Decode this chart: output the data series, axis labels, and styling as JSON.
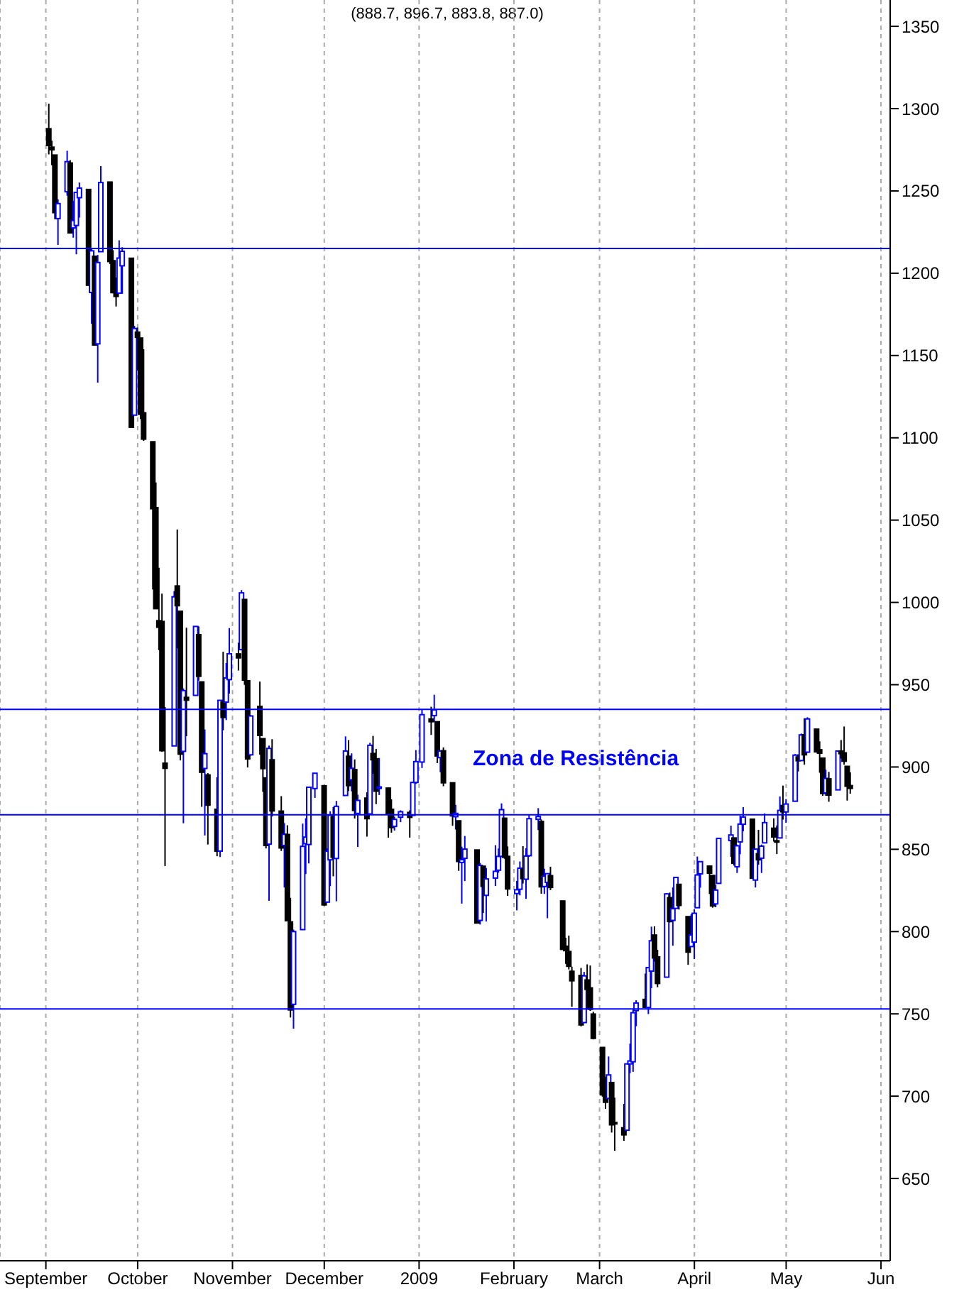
{
  "chart_data": {
    "type": "candlestick",
    "title": "(888.7, 896.7, 883.8, 887.0)",
    "annotations": [
      "Zona de Resistência"
    ],
    "x": [
      "2008-09-02",
      "2008-09-03",
      "2008-09-04",
      "2008-09-05",
      "2008-09-08",
      "2008-09-09",
      "2008-09-10",
      "2008-09-11",
      "2008-09-12",
      "2008-09-15",
      "2008-09-16",
      "2008-09-17",
      "2008-09-18",
      "2008-09-19",
      "2008-09-22",
      "2008-09-23",
      "2008-09-24",
      "2008-09-25",
      "2008-09-26",
      "2008-09-29",
      "2008-09-30",
      "2008-10-01",
      "2008-10-02",
      "2008-10-03",
      "2008-10-06",
      "2008-10-07",
      "2008-10-08",
      "2008-10-09",
      "2008-10-10",
      "2008-10-13",
      "2008-10-14",
      "2008-10-15",
      "2008-10-16",
      "2008-10-17",
      "2008-10-20",
      "2008-10-21",
      "2008-10-22",
      "2008-10-23",
      "2008-10-24",
      "2008-10-27",
      "2008-10-28",
      "2008-10-29",
      "2008-10-30",
      "2008-10-31",
      "2008-11-03",
      "2008-11-04",
      "2008-11-05",
      "2008-11-06",
      "2008-11-07",
      "2008-11-10",
      "2008-11-11",
      "2008-11-12",
      "2008-11-13",
      "2008-11-14",
      "2008-11-17",
      "2008-11-18",
      "2008-11-19",
      "2008-11-20",
      "2008-11-21",
      "2008-11-24",
      "2008-11-25",
      "2008-11-26",
      "2008-11-28",
      "2008-12-01",
      "2008-12-02",
      "2008-12-03",
      "2008-12-04",
      "2008-12-05",
      "2008-12-08",
      "2008-12-09",
      "2008-12-10",
      "2008-12-11",
      "2008-12-12",
      "2008-12-15",
      "2008-12-16",
      "2008-12-17",
      "2008-12-18",
      "2008-12-19",
      "2008-12-22",
      "2008-12-23",
      "2008-12-24",
      "2008-12-26",
      "2008-12-29",
      "2008-12-30",
      "2008-12-31",
      "2009-01-02",
      "2009-01-05",
      "2009-01-06",
      "2009-01-07",
      "2009-01-08",
      "2009-01-09",
      "2009-01-12",
      "2009-01-13",
      "2009-01-14",
      "2009-01-15",
      "2009-01-16",
      "2009-01-20",
      "2009-01-21",
      "2009-01-22",
      "2009-01-23",
      "2009-01-26",
      "2009-01-27",
      "2009-01-28",
      "2009-01-29",
      "2009-01-30",
      "2009-02-02",
      "2009-02-03",
      "2009-02-04",
      "2009-02-05",
      "2009-02-06",
      "2009-02-09",
      "2009-02-10",
      "2009-02-11",
      "2009-02-12",
      "2009-02-13",
      "2009-02-17",
      "2009-02-18",
      "2009-02-19",
      "2009-02-20",
      "2009-02-23",
      "2009-02-24",
      "2009-02-25",
      "2009-02-26",
      "2009-02-27",
      "2009-03-02",
      "2009-03-03",
      "2009-03-04",
      "2009-03-05",
      "2009-03-06",
      "2009-03-09",
      "2009-03-10",
      "2009-03-11",
      "2009-03-12",
      "2009-03-13",
      "2009-03-16",
      "2009-03-17",
      "2009-03-18",
      "2009-03-19",
      "2009-03-20",
      "2009-03-23",
      "2009-03-24",
      "2009-03-25",
      "2009-03-26",
      "2009-03-27",
      "2009-03-30",
      "2009-03-31",
      "2009-04-01",
      "2009-04-02",
      "2009-04-03",
      "2009-04-06",
      "2009-04-07",
      "2009-04-08",
      "2009-04-09",
      "2009-04-13",
      "2009-04-14",
      "2009-04-15",
      "2009-04-16",
      "2009-04-17",
      "2009-04-20",
      "2009-04-21",
      "2009-04-22",
      "2009-04-23",
      "2009-04-24",
      "2009-04-27",
      "2009-04-28",
      "2009-04-29",
      "2009-04-30",
      "2009-05-01",
      "2009-05-04",
      "2009-05-05",
      "2009-05-06",
      "2009-05-07",
      "2009-05-08",
      "2009-05-11",
      "2009-05-12",
      "2009-05-13",
      "2009-05-14",
      "2009-05-15",
      "2009-05-18",
      "2009-05-19",
      "2009-05-20",
      "2009-05-21",
      "2009-05-22"
    ],
    "ohlc": [
      [
        1287.8,
        1303.0,
        1272.2,
        1277.6
      ],
      [
        1276.6,
        1280.6,
        1265.6,
        1275.0
      ],
      [
        1271.8,
        1271.8,
        1232.8,
        1236.8
      ],
      [
        1233.2,
        1244.9,
        1217.2,
        1242.3
      ],
      [
        1249.5,
        1274.4,
        1247.1,
        1267.8
      ],
      [
        1267.0,
        1268.7,
        1224.5,
        1224.5
      ],
      [
        1227.5,
        1243.9,
        1221.6,
        1232.0
      ],
      [
        1229.0,
        1249.1,
        1211.5,
        1249.1
      ],
      [
        1245.9,
        1255.1,
        1233.8,
        1251.7
      ],
      [
        1250.9,
        1250.9,
        1192.7,
        1192.7
      ],
      [
        1188.3,
        1214.8,
        1169.3,
        1213.6
      ],
      [
        1210.3,
        1210.3,
        1155.9,
        1156.4
      ],
      [
        1157.1,
        1211.1,
        1133.5,
        1206.5
      ],
      [
        1213.1,
        1265.1,
        1213.1,
        1255.1
      ],
      [
        1255.4,
        1255.4,
        1205.6,
        1207.1
      ],
      [
        1207.6,
        1214.0,
        1187.8,
        1188.2
      ],
      [
        1188.8,
        1197.4,
        1179.8,
        1185.9
      ],
      [
        1187.9,
        1220.0,
        1187.9,
        1209.2
      ],
      [
        1204.5,
        1215.8,
        1187.5,
        1213.3
      ],
      [
        1209.1,
        1209.1,
        1106.4,
        1106.4
      ],
      [
        1113.8,
        1168.0,
        1113.8,
        1166.4
      ],
      [
        1164.2,
        1167.0,
        1140.8,
        1161.1
      ],
      [
        1160.6,
        1160.6,
        1111.4,
        1114.3
      ],
      [
        1115.2,
        1153.8,
        1098.1,
        1099.2
      ],
      [
        1097.6,
        1097.6,
        1007.9,
        1056.9
      ],
      [
        1057.6,
        1072.9,
        996.2,
        996.2
      ],
      [
        988.9,
        1021.1,
        971.0,
        984.9
      ],
      [
        988.4,
        1005.3,
        909.2,
        909.9
      ],
      [
        902.3,
        936.4,
        839.8,
        899.2
      ],
      [
        912.8,
        1006.9,
        912.8,
        1003.4
      ],
      [
        1010.0,
        1044.3,
        972.1,
        998.0
      ],
      [
        994.6,
        994.6,
        904.0,
        907.8
      ],
      [
        909.5,
        947.7,
        865.8,
        946.4
      ],
      [
        942.3,
        984.6,
        918.7,
        940.6
      ],
      [
        943.5,
        985.4,
        943.5,
        985.4
      ],
      [
        980.4,
        985.4,
        952.5,
        955.1
      ],
      [
        951.7,
        951.7,
        875.8,
        896.8
      ],
      [
        899.1,
        922.8,
        858.4,
        908.1
      ],
      [
        895.2,
        896.3,
        852.9,
        876.8
      ],
      [
        874.3,
        893.8,
        845.8,
        848.9
      ],
      [
        848.9,
        940.5,
        845.3,
        940.5
      ],
      [
        939.5,
        970.0,
        922.3,
        930.1
      ],
      [
        939.4,
        963.2,
        928.5,
        954.1
      ],
      [
        953.1,
        984.4,
        944.6,
        968.8
      ],
      [
        968.7,
        975.5,
        958.6,
        966.3
      ],
      [
        971.3,
        1007.5,
        971.3,
        1005.8
      ],
      [
        1001.8,
        1001.8,
        949.9,
        952.8
      ],
      [
        952.4,
        952.4,
        899.7,
        904.9
      ],
      [
        907.4,
        931.5,
        906.9,
        931.0
      ],
      [
        936.8,
        951.9,
        907.5,
        919.2
      ],
      [
        917.2,
        917.2,
        884.9,
        899.0
      ],
      [
        893.4,
        893.4,
        850.5,
        852.3
      ],
      [
        853.1,
        913.0,
        818.7,
        911.3
      ],
      [
        904.4,
        916.9,
        869.9,
        873.3
      ],
      [
        873.2,
        882.3,
        849.0,
        850.8
      ],
      [
        852.3,
        865.9,
        826.8,
        859.1
      ],
      [
        859.0,
        864.6,
        806.2,
        806.6
      ],
      [
        805.9,
        820.5,
        747.8,
        752.4
      ],
      [
        755.8,
        801.2,
        741.0,
        800.0
      ],
      [
        801.2,
        865.6,
        801.2,
        851.8
      ],
      [
        853.4,
        868.9,
        835.0,
        857.4
      ],
      [
        852.9,
        887.7,
        841.4,
        887.7
      ],
      [
        886.9,
        896.3,
        881.2,
        896.2
      ],
      [
        888.6,
        888.6,
        815.7,
        816.2
      ],
      [
        817.9,
        850.5,
        817.9,
        848.8
      ],
      [
        843.6,
        873.1,
        827.6,
        870.7
      ],
      [
        869.8,
        875.6,
        833.6,
        845.2
      ],
      [
        844.4,
        879.4,
        818.4,
        876.1
      ],
      [
        882.7,
        918.6,
        882.7,
        909.7
      ],
      [
        906.5,
        916.3,
        885.4,
        888.7
      ],
      [
        892.2,
        908.3,
        885.2,
        899.2
      ],
      [
        898.4,
        904.6,
        868.7,
        873.6
      ],
      [
        871.8,
        883.2,
        851.4,
        879.7
      ],
      [
        881.1,
        884.6,
        857.7,
        868.6
      ],
      [
        871.5,
        914.7,
        871.5,
        913.2
      ],
      [
        908.2,
        918.9,
        895.9,
        904.4
      ],
      [
        905.0,
        911.0,
        877.4,
        885.3
      ],
      [
        887.0,
        905.5,
        883.0,
        887.9
      ],
      [
        887.2,
        887.4,
        857.1,
        871.6
      ],
      [
        874.3,
        880.4,
        860.1,
        863.2
      ],
      [
        863.9,
        869.8,
        861.4,
        868.2
      ],
      [
        869.5,
        873.7,
        866.5,
        872.8
      ],
      [
        872.4,
        873.7,
        857.1,
        869.4
      ],
      [
        870.6,
        891.1,
        870.6,
        890.6
      ],
      [
        890.6,
        910.3,
        889.7,
        903.3
      ],
      [
        903.0,
        934.7,
        899.4,
        931.8
      ],
      [
        929.2,
        936.6,
        919.5,
        927.5
      ],
      [
        931.2,
        943.9,
        927.3,
        934.7
      ],
      [
        927.5,
        927.5,
        902.4,
        906.7
      ],
      [
        905.7,
        910.0,
        896.8,
        909.7
      ],
      [
        909.9,
        911.9,
        888.3,
        890.4
      ],
      [
        890.4,
        890.4,
        864.3,
        870.3
      ],
      [
        869.8,
        877.0,
        862.0,
        871.8
      ],
      [
        867.3,
        867.3,
        836.9,
        842.6
      ],
      [
        842.0,
        851.6,
        817.0,
        843.7
      ],
      [
        844.5,
        858.1,
        830.7,
        850.1
      ],
      [
        849.6,
        849.6,
        805.2,
        805.2
      ],
      [
        806.8,
        841.7,
        804.3,
        840.2
      ],
      [
        839.7,
        839.7,
        811.3,
        827.5
      ],
      [
        822.0,
        838.6,
        806.1,
        832.0
      ],
      [
        832.5,
        852.5,
        827.7,
        836.6
      ],
      [
        837.3,
        850.5,
        835.8,
        845.7
      ],
      [
        845.7,
        877.9,
        845.7,
        874.1
      ],
      [
        868.9,
        868.9,
        844.2,
        845.1
      ],
      [
        845.7,
        851.7,
        821.7,
        825.9
      ],
      [
        823.1,
        830.8,
        812.9,
        825.4
      ],
      [
        825.7,
        842.6,
        822.0,
        838.5
      ],
      [
        837.8,
        851.9,
        829.2,
        832.2
      ],
      [
        831.8,
        850.6,
        819.9,
        845.9
      ],
      [
        846.1,
        870.8,
        845.4,
        868.6
      ],
      [
        868.2,
        875.0,
        861.7,
        869.9
      ],
      [
        866.9,
        868.1,
        823.0,
        827.2
      ],
      [
        827.4,
        838.2,
        822.9,
        833.7
      ],
      [
        829.9,
        835.5,
        808.1,
        835.2
      ],
      [
        834.0,
        839.4,
        825.2,
        826.8
      ],
      [
        818.6,
        818.6,
        789.2,
        789.2
      ],
      [
        791.1,
        796.2,
        780.4,
        788.4
      ],
      [
        787.9,
        797.6,
        777.0,
        778.9
      ],
      [
        775.9,
        778.7,
        754.3,
        770.1
      ],
      [
        773.3,
        777.9,
        742.4,
        743.3
      ],
      [
        744.7,
        775.5,
        744.7,
        773.1
      ],
      [
        770.6,
        780.1,
        752.9,
        764.9
      ],
      [
        765.8,
        779.4,
        751.8,
        752.8
      ],
      [
        749.9,
        751.3,
        734.5,
        735.1
      ],
      [
        729.6,
        729.6,
        699.7,
        700.8
      ],
      [
        704.4,
        711.7,
        692.3,
        696.3
      ],
      [
        698.6,
        724.1,
        698.6,
        712.9
      ],
      [
        708.3,
        708.3,
        677.9,
        682.6
      ],
      [
        684.0,
        699.1,
        666.8,
        683.4
      ],
      [
        680.8,
        695.3,
        672.9,
        676.5
      ],
      [
        679.3,
        719.6,
        679.3,
        719.6
      ],
      [
        719.6,
        731.9,
        713.9,
        721.4
      ],
      [
        720.9,
        752.6,
        714.8,
        750.7
      ],
      [
        752.0,
        758.3,
        742.5,
        756.6
      ],
      [
        758.8,
        774.5,
        753.4,
        753.9
      ],
      [
        753.9,
        778.1,
        749.9,
        778.1
      ],
      [
        776.0,
        803.0,
        765.6,
        794.4
      ],
      [
        797.9,
        803.2,
        781.8,
        784.0
      ],
      [
        784.6,
        788.9,
        766.2,
        768.5
      ],
      [
        772.3,
        823.4,
        772.3,
        822.9
      ],
      [
        820.6,
        823.7,
        805.5,
        806.1
      ],
      [
        806.8,
        826.8,
        791.4,
        813.9
      ],
      [
        814.1,
        833.0,
        814.1,
        832.9
      ],
      [
        828.7,
        828.7,
        813.4,
        815.9
      ],
      [
        809.1,
        809.1,
        779.8,
        787.5
      ],
      [
        790.9,
        810.5,
        790.9,
        797.9
      ],
      [
        793.6,
        813.6,
        783.3,
        811.1
      ],
      [
        814.5,
        845.6,
        814.5,
        834.4
      ],
      [
        835.1,
        842.5,
        826.7,
        842.5
      ],
      [
        839.8,
        839.8,
        822.8,
        835.5
      ],
      [
        834.1,
        834.1,
        814.5,
        815.6
      ],
      [
        816.8,
        828.4,
        814.8,
        825.2
      ],
      [
        829.3,
        856.9,
        829.3,
        856.6
      ],
      [
        855.3,
        864.3,
        845.4,
        858.7
      ],
      [
        856.9,
        856.9,
        840.1,
        841.5
      ],
      [
        839.4,
        852.9,
        835.6,
        852.1
      ],
      [
        854.5,
        870.4,
        847.0,
        865.3
      ],
      [
        865.2,
        875.6,
        860.9,
        869.6
      ],
      [
        868.3,
        868.3,
        832.4,
        832.4
      ],
      [
        831.3,
        850.1,
        826.8,
        850.1
      ],
      [
        847.3,
        861.8,
        840.6,
        843.6
      ],
      [
        844.6,
        852.9,
        835.6,
        851.9
      ],
      [
        853.9,
        871.8,
        853.9,
        866.2
      ],
      [
        862.8,
        868.8,
        854.7,
        857.5
      ],
      [
        854.5,
        864.5,
        847.1,
        855.2
      ],
      [
        856.9,
        882.1,
        856.9,
        873.6
      ],
      [
        876.6,
        888.7,
        868.0,
        872.8
      ],
      [
        872.7,
        880.5,
        866.1,
        877.5
      ],
      [
        879.2,
        907.9,
        879.2,
        907.2
      ],
      [
        906.1,
        907.7,
        897.3,
        903.8
      ],
      [
        903.9,
        920.3,
        903.9,
        919.5
      ],
      [
        919.6,
        929.6,
        901.4,
        907.4
      ],
      [
        909.0,
        930.2,
        909.0,
        929.2
      ],
      [
        923.0,
        923.0,
        908.7,
        909.2
      ],
      [
        910.5,
        915.6,
        896.5,
        908.4
      ],
      [
        905.4,
        905.4,
        882.5,
        883.9
      ],
      [
        884.2,
        898.4,
        882.5,
        893.1
      ],
      [
        892.8,
        897.0,
        878.9,
        882.9
      ],
      [
        886.1,
        910.0,
        886.1,
        909.7
      ],
      [
        909.7,
        916.4,
        905.2,
        908.1
      ],
      [
        908.6,
        924.6,
        901.4,
        903.5
      ],
      [
        900.4,
        900.4,
        879.6,
        888.3
      ],
      [
        888.7,
        896.7,
        883.8,
        887.0
      ]
    ],
    "colors": [
      "#000000",
      "#000000",
      "#000000",
      "#0000ff",
      "#0000ff",
      "#000000",
      "#0000ff",
      "#0000ff",
      "#0000ff",
      "#000000",
      "#0000ff",
      "#000000",
      "#0000ff",
      "#0000ff",
      "#000000",
      "#000000",
      "#000000",
      "#0000ff",
      "#0000ff",
      "#000000",
      "#0000ff",
      "#000000",
      "#000000",
      "#000000",
      "#000000",
      "#000000",
      "#000000",
      "#000000",
      "#000000",
      "#0000ff",
      "#000000",
      "#000000",
      "#0000ff",
      "#000000",
      "#0000ff",
      "#000000",
      "#000000",
      "#0000ff",
      "#000000",
      "#000000",
      "#0000ff",
      "#000000",
      "#0000ff",
      "#0000ff",
      "#000000",
      "#0000ff",
      "#000000",
      "#000000",
      "#0000ff",
      "#000000",
      "#000000",
      "#000000",
      "#0000ff",
      "#000000",
      "#000000",
      "#0000ff",
      "#000000",
      "#000000",
      "#0000ff",
      "#0000ff",
      "#0000ff",
      "#0000ff",
      "#0000ff",
      "#000000",
      "#0000ff",
      "#0000ff",
      "#000000",
      "#0000ff",
      "#0000ff",
      "#000000",
      "#0000ff",
      "#000000",
      "#0000ff",
      "#000000",
      "#0000ff",
      "#000000",
      "#000000",
      "#0000ff",
      "#000000",
      "#000000",
      "#0000ff",
      "#0000ff",
      "#000000",
      "#0000ff",
      "#0000ff",
      "#0000ff",
      "#000000",
      "#0000ff",
      "#000000",
      "#0000ff",
      "#000000",
      "#000000",
      "#0000ff",
      "#000000",
      "#0000ff",
      "#0000ff",
      "#000000",
      "#0000ff",
      "#000000",
      "#0000ff",
      "#0000ff",
      "#0000ff",
      "#0000ff",
      "#000000",
      "#000000",
      "#0000ff",
      "#0000ff",
      "#000000",
      "#0000ff",
      "#0000ff",
      "#0000ff",
      "#000000",
      "#0000ff",
      "#0000ff",
      "#000000",
      "#000000",
      "#000000",
      "#000000",
      "#000000",
      "#000000",
      "#0000ff",
      "#000000",
      "#000000",
      "#000000",
      "#000000",
      "#000000",
      "#0000ff",
      "#000000",
      "#000000",
      "#000000",
      "#0000ff",
      "#0000ff",
      "#0000ff",
      "#0000ff",
      "#000000",
      "#0000ff",
      "#0000ff",
      "#000000",
      "#000000",
      "#0000ff",
      "#000000",
      "#0000ff",
      "#0000ff",
      "#000000",
      "#000000",
      "#0000ff",
      "#0000ff",
      "#0000ff",
      "#0000ff",
      "#000000",
      "#000000",
      "#0000ff",
      "#0000ff",
      "#0000ff",
      "#000000",
      "#0000ff",
      "#0000ff",
      "#0000ff",
      "#000000",
      "#0000ff",
      "#000000",
      "#0000ff",
      "#0000ff",
      "#000000",
      "#000000",
      "#0000ff",
      "#000000",
      "#0000ff",
      "#0000ff",
      "#000000",
      "#0000ff",
      "#000000",
      "#0000ff",
      "#000000",
      "#000000",
      "#000000",
      "#0000ff",
      "#000000",
      "#0000ff",
      "#000000",
      "#000000",
      "#000000",
      "#000000"
    ],
    "xlim": [
      "2008-08-17",
      "2009-06-04"
    ],
    "xticks": [
      {
        "value": "2008-09-01",
        "label": "September"
      },
      {
        "value": "2008-10-01",
        "label": "October"
      },
      {
        "value": "2008-11-01",
        "label": "November"
      },
      {
        "value": "2008-12-01",
        "label": "December"
      },
      {
        "value": "2009-01-01",
        "label": "2009"
      },
      {
        "value": "2009-02-01",
        "label": "February"
      },
      {
        "value": "2009-03-01",
        "label": "March"
      },
      {
        "value": "2009-04-01",
        "label": "April"
      },
      {
        "value": "2009-05-01",
        "label": "May"
      },
      {
        "value": "2009-06-01",
        "label": "Jun"
      }
    ],
    "ylim": [
      600,
      1366
    ],
    "yticks": [
      650,
      700,
      750,
      800,
      850,
      900,
      950,
      1000,
      1050,
      1100,
      1150,
      1200,
      1250,
      1300,
      1350
    ],
    "grid": "x",
    "ref_lines": [
      {
        "axis": "y",
        "value": 1215,
        "color": "#0000ff"
      },
      {
        "axis": "y",
        "value": 935,
        "color": "#0000ff"
      },
      {
        "axis": "y",
        "value": 871,
        "color": "#0000ff"
      },
      {
        "axis": "y",
        "value": 753,
        "color": "#0000ff"
      }
    ]
  }
}
